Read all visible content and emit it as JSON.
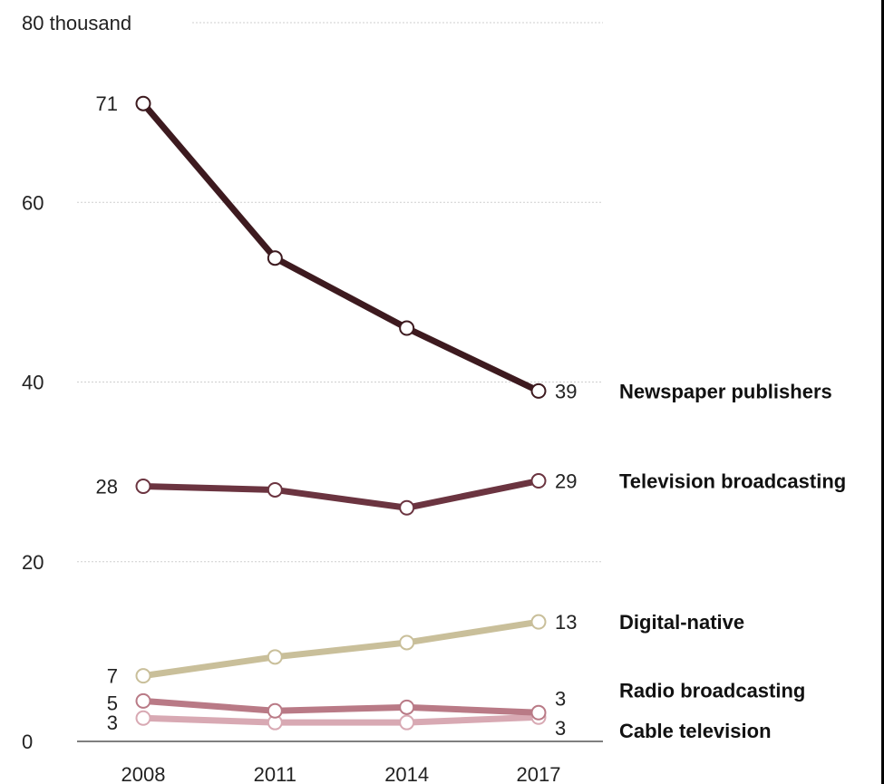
{
  "chart_data": {
    "type": "line",
    "x": [
      "2008",
      "2011",
      "2014",
      "2017"
    ],
    "y_tick_labels": [
      "0",
      "20",
      "40",
      "60",
      "80 thousand"
    ],
    "y_ticks": [
      0,
      20,
      40,
      60,
      80
    ],
    "ylim": [
      0,
      80
    ],
    "grid": true,
    "series": [
      {
        "name": "Newspaper publishers",
        "values": [
          71,
          53.8,
          46,
          39
        ],
        "start_label": "71",
        "end_label": "39",
        "color": "#3d1a1f"
      },
      {
        "name": "Television broadcasting",
        "values": [
          28.4,
          28,
          26,
          29
        ],
        "start_label": "28",
        "end_label": "29",
        "color": "#6b3440"
      },
      {
        "name": "Digital-native",
        "values": [
          7.3,
          9.4,
          11,
          13.3
        ],
        "start_label": "7",
        "end_label": "13",
        "color": "#c9bf9a"
      },
      {
        "name": "Radio broadcasting",
        "values": [
          4.5,
          3.4,
          3.8,
          3.2
        ],
        "start_label": "5",
        "end_label": "3",
        "color": "#b97a86"
      },
      {
        "name": "Cable television",
        "values": [
          2.6,
          2.1,
          2.1,
          2.7
        ],
        "start_label": "3",
        "end_label": "3",
        "color": "#d8a9b3"
      }
    ]
  }
}
